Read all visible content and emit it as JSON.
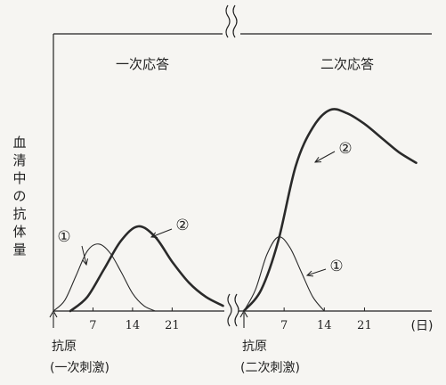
{
  "chart_data": {
    "type": "line",
    "ylabel": "血清中の抗体量",
    "x_unit": "(日)",
    "panels": [
      {
        "title": "一次応答",
        "ticks": [
          7,
          14,
          21
        ],
        "stimulus_label": "抗原",
        "stimulus_sub": "(一次刺激)",
        "series": [
          {
            "name": "①",
            "style": "thin",
            "x": [
              0,
              2,
              4,
              6,
              8,
              10,
              12,
              14,
              16,
              18
            ],
            "y": [
              0,
              6,
              20,
              34,
              38,
              33,
              22,
              10,
              3,
              0
            ]
          },
          {
            "name": "②",
            "style": "thick",
            "x": [
              3,
              6,
              9,
              12,
              15,
              18,
              21,
              24,
              27,
              30
            ],
            "y": [
              0,
              8,
              24,
              40,
              48,
              42,
              28,
              16,
              8,
              3
            ]
          }
        ]
      },
      {
        "title": "二次応答",
        "ticks": [
          7,
          14,
          21
        ],
        "stimulus_label": "抗原",
        "stimulus_sub": "(二次刺激)",
        "series": [
          {
            "name": "①",
            "style": "thin",
            "x": [
              0,
              2,
              4,
              6,
              8,
              10,
              12,
              14
            ],
            "y": [
              0,
              12,
              32,
              42,
              36,
              22,
              8,
              0
            ]
          },
          {
            "name": "②",
            "style": "thick",
            "x": [
              0,
              3,
              6,
              9,
              12,
              15,
              18,
              21,
              24,
              27,
              30
            ],
            "y": [
              0,
              12,
              40,
              82,
              104,
              114,
              112,
              106,
              98,
              90,
              84
            ]
          }
        ]
      }
    ]
  }
}
